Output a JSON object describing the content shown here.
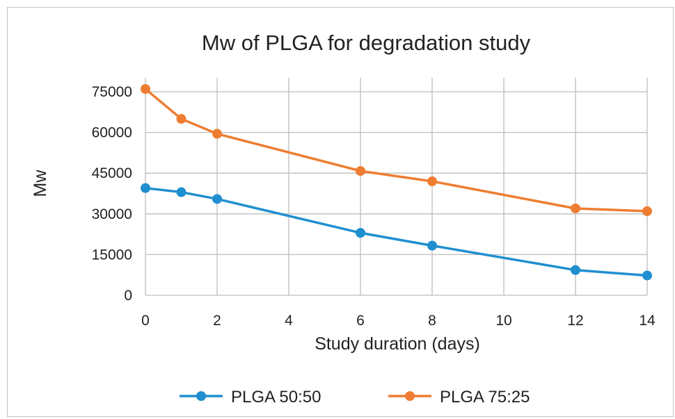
{
  "chart_data": {
    "type": "line",
    "title": "Mw of PLGA for degradation study",
    "xlabel": "Study duration (days)",
    "ylabel": "Mw",
    "xlim": [
      0,
      14
    ],
    "ylim": [
      0,
      75000
    ],
    "xticks": [
      0,
      2,
      4,
      6,
      8,
      10,
      12,
      14
    ],
    "yticks": [
      0,
      15000,
      30000,
      45000,
      60000,
      75000
    ],
    "grid": true,
    "legend_position": "bottom",
    "series": [
      {
        "name": "PLGA 50:50",
        "color": "#1f8fd0",
        "x": [
          0,
          1,
          2,
          6,
          8,
          12,
          14
        ],
        "y": [
          39500,
          38000,
          35500,
          23000,
          18300,
          9300,
          7300
        ]
      },
      {
        "name": "PLGA 75:25",
        "color": "#ee7d31",
        "x": [
          0,
          1,
          2,
          6,
          8,
          12,
          14
        ],
        "y": [
          76000,
          65000,
          59500,
          45800,
          42000,
          32000,
          31000
        ]
      }
    ]
  }
}
